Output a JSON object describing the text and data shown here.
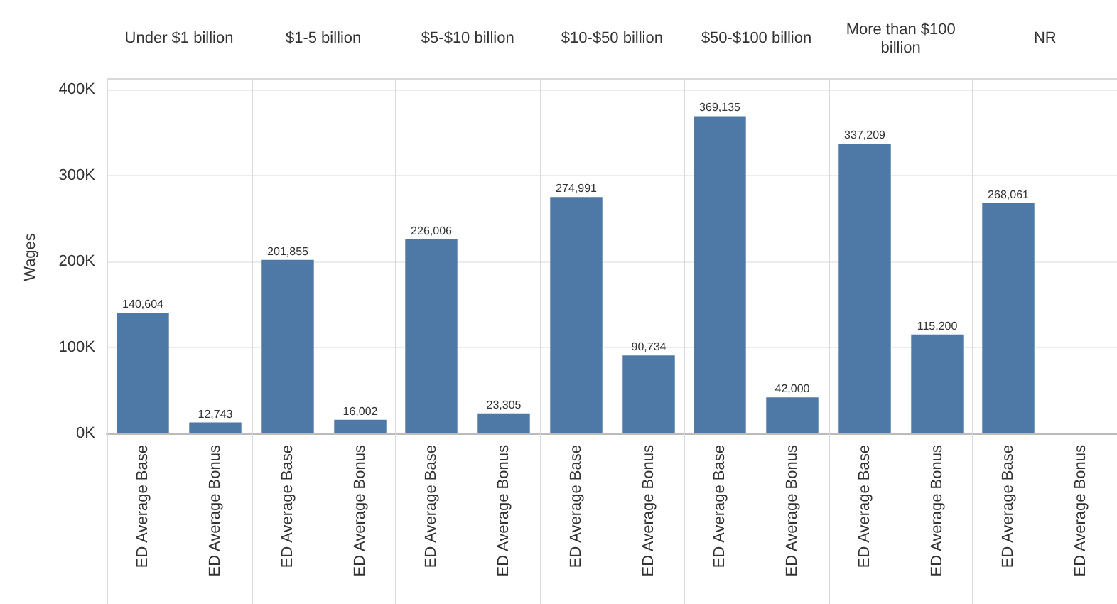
{
  "chart_data": [
    {
      "type": "bar",
      "title": "Under $1 billion",
      "ylabel": "Wages",
      "categories": [
        "ED Average Base",
        "ED Average Bonus"
      ],
      "values": [
        140604,
        12743
      ],
      "value_labels": [
        "140,604",
        "12,743"
      ],
      "color": "#4e79a7",
      "ylim": [
        0,
        410000
      ],
      "yticks": [
        {
          "value": 0,
          "label": "0K"
        },
        {
          "value": 100000,
          "label": "100K"
        },
        {
          "value": 200000,
          "label": "200K"
        },
        {
          "value": 300000,
          "label": "300K"
        },
        {
          "value": 400000,
          "label": "400K"
        }
      ],
      "grid": "y"
    },
    {
      "type": "bar",
      "title": "$1-5 billion",
      "categories": [
        "ED Average Base",
        "ED Average Bonus"
      ],
      "values": [
        201855,
        16002
      ],
      "value_labels": [
        "201,855",
        "16,002"
      ],
      "color": "#4e79a7",
      "ylim": [
        0,
        410000
      ],
      "yticks": [
        {
          "value": 0,
          "label": null
        },
        {
          "value": 100000,
          "label": null
        },
        {
          "value": 200000,
          "label": null
        },
        {
          "value": 300000,
          "label": null
        },
        {
          "value": 400000,
          "label": null
        }
      ],
      "grid": "y",
      "tick_labels": "x"
    },
    {
      "type": "bar",
      "title": "$5-$10 billion",
      "categories": [
        "ED Average Base",
        "ED Average Bonus"
      ],
      "values": [
        226006,
        23305
      ],
      "value_labels": [
        "226,006",
        "23,305"
      ],
      "color": "#4e79a7",
      "ylim": [
        0,
        410000
      ],
      "yticks": [
        {
          "value": 0,
          "label": null
        },
        {
          "value": 100000,
          "label": null
        },
        {
          "value": 200000,
          "label": null
        },
        {
          "value": 300000,
          "label": null
        },
        {
          "value": 400000,
          "label": null
        }
      ],
      "grid": "y",
      "tick_labels": "x"
    },
    {
      "type": "bar",
      "title": "$10-$50 billion",
      "categories": [
        "ED Average Base",
        "ED Average Bonus"
      ],
      "values": [
        274991,
        90734
      ],
      "value_labels": [
        "274,991",
        "90,734"
      ],
      "color": "#4e79a7",
      "ylim": [
        0,
        410000
      ],
      "yticks": [
        {
          "value": 0,
          "label": null
        },
        {
          "value": 100000,
          "label": null
        },
        {
          "value": 200000,
          "label": null
        },
        {
          "value": 300000,
          "label": null
        },
        {
          "value": 400000,
          "label": null
        }
      ],
      "grid": "y",
      "tick_labels": "x"
    },
    {
      "type": "bar",
      "title": "$50-$100 billion",
      "categories": [
        "ED Average Base",
        "ED Average Bonus"
      ],
      "values": [
        369135,
        42000
      ],
      "value_labels": [
        "369,135",
        "42,000"
      ],
      "color": "#4e79a7",
      "ylim": [
        0,
        410000
      ],
      "yticks": [
        {
          "value": 0,
          "label": null
        },
        {
          "value": 100000,
          "label": null
        },
        {
          "value": 200000,
          "label": null
        },
        {
          "value": 300000,
          "label": null
        },
        {
          "value": 400000,
          "label": null
        }
      ],
      "grid": "y",
      "tick_labels": "x"
    },
    {
      "type": "bar",
      "title": "More than $100 billion",
      "categories": [
        "ED Average Base",
        "ED Average Bonus"
      ],
      "values": [
        337209,
        115200
      ],
      "value_labels": [
        "337,209",
        "115,200"
      ],
      "color": "#4e79a7",
      "ylim": [
        0,
        410000
      ],
      "yticks": [
        {
          "value": 0,
          "label": null
        },
        {
          "value": 100000,
          "label": null
        },
        {
          "value": 200000,
          "label": null
        },
        {
          "value": 300000,
          "label": null
        },
        {
          "value": 400000,
          "label": null
        }
      ],
      "grid": "y",
      "tick_labels": "x"
    },
    {
      "type": "bar",
      "title": "NR",
      "categories": [
        "ED Average Base",
        "ED Average Bonus"
      ],
      "values": [
        268061,
        null
      ],
      "value_labels": [
        "268,061",
        null
      ],
      "color": "#4e79a7",
      "ylim": [
        0,
        410000
      ],
      "yticks": [
        {
          "value": 0,
          "label": null
        },
        {
          "value": 100000,
          "label": null
        },
        {
          "value": 200000,
          "label": null
        },
        {
          "value": 300000,
          "label": null
        },
        {
          "value": 400000,
          "label": null
        }
      ],
      "grid": "y",
      "tick_labels": "x"
    }
  ]
}
